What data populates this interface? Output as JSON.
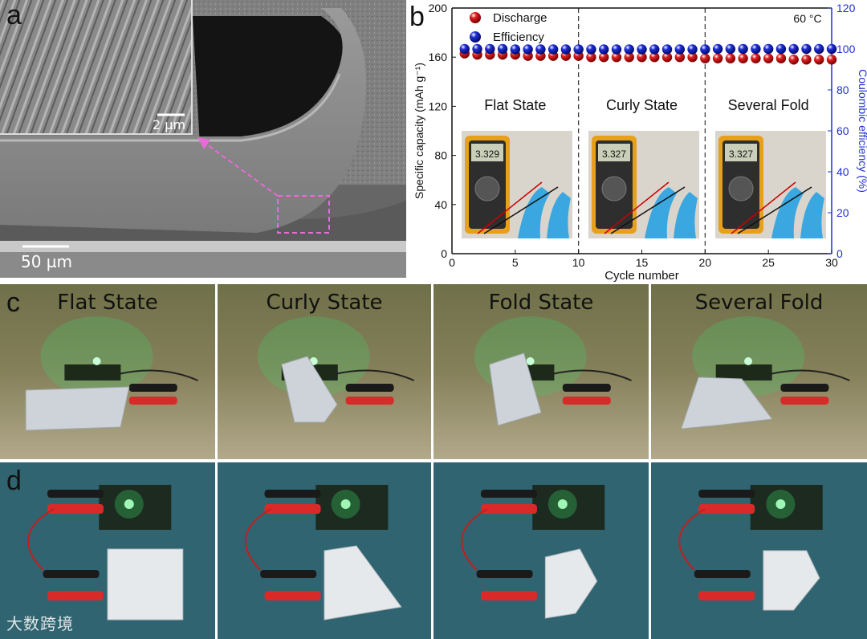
{
  "panel_a": {
    "label": "a",
    "scale_main": "50 µm",
    "scale_inset": "2 µm"
  },
  "panel_b": {
    "label": "b",
    "temperature": "60 °C",
    "photo_readings": [
      "3.329",
      "3.327",
      "3.327"
    ]
  },
  "panel_c": {
    "label": "c",
    "titles": [
      "Flat State",
      "Curly State",
      "Fold State",
      "Several Fold"
    ]
  },
  "panel_d": {
    "label": "d",
    "watermark": "大数跨境"
  },
  "chart_data": {
    "type": "scatter",
    "x": [
      1,
      2,
      3,
      4,
      5,
      6,
      7,
      8,
      9,
      10,
      11,
      12,
      13,
      14,
      15,
      16,
      17,
      18,
      19,
      20,
      21,
      22,
      23,
      24,
      25,
      26,
      27,
      28,
      29,
      30
    ],
    "series": [
      {
        "name": "Discharge",
        "axis": "left",
        "color": "#e02020",
        "values": [
          163,
          162,
          162,
          162,
          162,
          161,
          161,
          161,
          161,
          161,
          160,
          160,
          160,
          160,
          160,
          160,
          160,
          160,
          160,
          159,
          159,
          159,
          159,
          159,
          159,
          159,
          158,
          158,
          158,
          158
        ]
      },
      {
        "name": "Efficiency",
        "axis": "right",
        "color": "#1f2fd6",
        "values": [
          100,
          100,
          100,
          100,
          99.8,
          99.8,
          99.8,
          99.8,
          99.8,
          99.8,
          99.8,
          99.8,
          99.8,
          99.8,
          99.8,
          99.8,
          99.8,
          99.8,
          99.8,
          99.8,
          100,
          100,
          100,
          100,
          100,
          100,
          100,
          100,
          100,
          100
        ]
      }
    ],
    "xlabel": "Cycle number",
    "ylabel_left": "Specific capacity (mAh g⁻¹)",
    "ylabel_right": "Coulombic efficiency (%)",
    "xlim": [
      0,
      30
    ],
    "ylim_left": [
      0,
      200
    ],
    "ylim_right": [
      0,
      120
    ],
    "xticks": [
      0,
      5,
      10,
      15,
      20,
      25,
      30
    ],
    "yticks_left": [
      0,
      40,
      80,
      120,
      160,
      200
    ],
    "yticks_right": [
      0,
      20,
      40,
      60,
      80,
      100,
      120
    ],
    "dividers": [
      10,
      20
    ],
    "state_labels": [
      "Flat State",
      "Curly State",
      "Several Fold"
    ],
    "legend": "top-left",
    "grid": false
  }
}
